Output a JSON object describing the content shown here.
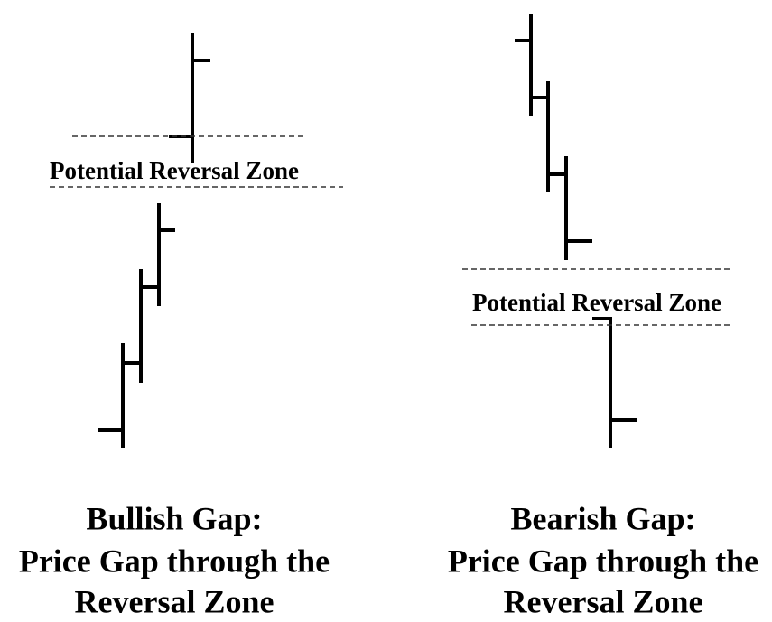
{
  "panels": [
    {
      "zone_label": "Potential Reversal Zone",
      "caption": [
        "Bullish Gap:",
        "Price Gap through the",
        "Reversal Zone"
      ]
    },
    {
      "zone_label": "Potential Reversal Zone",
      "caption": [
        "Bearish Gap:",
        "Price Gap through the",
        "Reversal Zone"
      ]
    }
  ]
}
